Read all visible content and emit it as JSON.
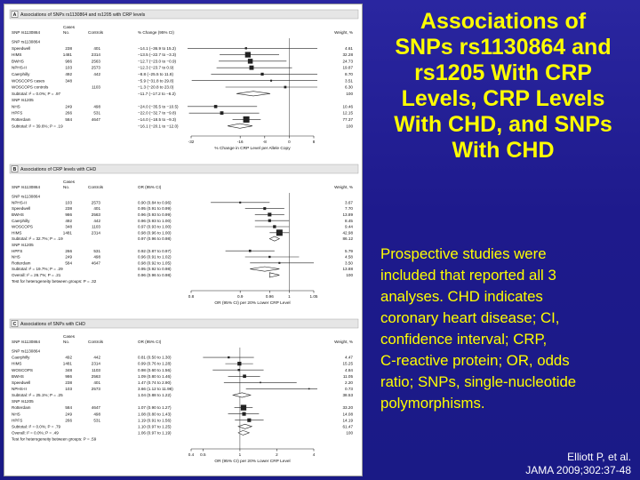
{
  "slide": {
    "title_lines": [
      "Associations of",
      "SNPs rs1130864 and",
      "rs1205 With CRP",
      "Levels, CRP Levels",
      "With CHD, and SNPs",
      "With CHD"
    ],
    "note_lines": [
      "Prospective studies were",
      "included that reported all 3",
      "analyses. CHD indicates",
      "coronary heart disease; CI,",
      "confidence interval; CRP,",
      "C-reactive protein; OR, odds",
      "ratio; SNPs, single-nucleotide",
      "polymorphisms."
    ],
    "citation_lines": [
      "Elliott P, et al.",
      "JAMA 2009;302:37-48"
    ]
  },
  "colors": {
    "background": "#1f1d8f",
    "title_text": "#ffff00",
    "note_text": "#ffff00",
    "citation_text": "#ffffff",
    "figure_bg": "#ffffff",
    "marker": "#222222",
    "header_bar": "#e6e6e6"
  },
  "panels": [
    {
      "letter": "A",
      "title": "Associations of SNPs rs1130864 and rs1205 with CRP levels",
      "headers": [
        "SNP rs1130864",
        "Cases, No.",
        "Controls",
        "% Change (95% CI)",
        "Weight, %"
      ],
      "axis": {
        "min": -32,
        "max": 8,
        "ticks": [
          -32,
          -16,
          -8,
          0,
          8
        ],
        "label": "% Change in CRP Level per Allele Copy",
        "reference": 0
      },
      "rows": [
        {
          "label": "SNP rs1130864",
          "kind": "group"
        },
        {
          "label": "Speedwell",
          "cases": "238",
          "controls": "401",
          "ci": "−14.1 (−36.9 to 15.2)",
          "weight": "4.61",
          "est": -14.1,
          "lo": -36.9,
          "hi": 15.2,
          "kind": "study"
        },
        {
          "label": "HIMS",
          "cases": "1481",
          "controls": "2314",
          "ci": "−13.5 (−22.7 to −3.3)",
          "weight": "32.28",
          "est": -13.5,
          "lo": -22.7,
          "hi": -3.3,
          "kind": "study"
        },
        {
          "label": "BWHS",
          "cases": "986",
          "controls": "2563",
          "ci": "−12.7 (−23.0 to −0.9)",
          "weight": "24.73",
          "est": -12.7,
          "lo": -23.0,
          "hi": -0.9,
          "kind": "study"
        },
        {
          "label": "NPHS-II",
          "cases": "103",
          "controls": "2573",
          "ci": "−12.3 (−23.7 to 0.9)",
          "weight": "19.87",
          "est": -12.3,
          "lo": -23.7,
          "hi": 0.9,
          "kind": "study"
        },
        {
          "label": "Caerphilly",
          "cases": "492",
          "controls": "442",
          "ci": "−8.8 (−25.5 to 11.8)",
          "weight": "8.70",
          "est": -8.8,
          "lo": -25.5,
          "hi": 11.8,
          "kind": "study"
        },
        {
          "label": "WOSCOPS cases",
          "cases": "348",
          "controls": "",
          "ci": "−5.9 (−31.8 to 29.8)",
          "weight": "3.51",
          "est": -5.9,
          "lo": -31.8,
          "hi": 29.8,
          "kind": "study"
        },
        {
          "label": "WOSCOPS controls",
          "cases": "",
          "controls": "1103",
          "ci": "−1.3 (−20.8 to 23.0)",
          "weight": "6.30",
          "est": -1.3,
          "lo": -20.8,
          "hi": 23.0,
          "kind": "study"
        },
        {
          "label": "Subtotal: I² = 0.0%; P = .97",
          "ci": "−11.7 (−17.2 to −6.2)",
          "weight": "100",
          "est": -11.7,
          "lo": -17.2,
          "hi": -6.2,
          "kind": "subtotal"
        },
        {
          "label": "SNP rs1205",
          "kind": "group"
        },
        {
          "label": "NHS",
          "cases": "249",
          "controls": "498",
          "ci": "−24.0 (−35.5 to −10.5)",
          "weight": "10.46",
          "est": -24.0,
          "lo": -35.5,
          "hi": -10.5,
          "kind": "study"
        },
        {
          "label": "HPFS",
          "cases": "266",
          "controls": "531",
          "ci": "−22.0 (−32.7 to −9.8)",
          "weight": "12.15",
          "est": -22.0,
          "lo": -32.7,
          "hi": -9.8,
          "kind": "study"
        },
        {
          "label": "Rotterdam",
          "cases": "584",
          "controls": "4647",
          "ci": "−14.0 (−18.5 to −9.3)",
          "weight": "77.37",
          "est": -14.0,
          "lo": -18.5,
          "hi": -9.3,
          "kind": "study"
        },
        {
          "label": "Subtotal: I² = 39.6%; P = .19",
          "ci": "−16.1 (−20.1 to −12.0)",
          "weight": "100",
          "est": -16.1,
          "lo": -20.1,
          "hi": -12.0,
          "kind": "subtotal"
        }
      ]
    },
    {
      "letter": "B",
      "title": "Associations of CRP levels with CHD",
      "headers": [
        "SNP rs1130864",
        "Cases, No.",
        "Controls",
        "OR (95% CI)",
        "Weight, %"
      ],
      "axis": {
        "min": 0.8,
        "max": 1.05,
        "ticks": [
          0.8,
          0.9,
          0.96,
          1.0,
          1.05
        ],
        "label": "OR (95% CI) per 20% Lower CRP Level",
        "reference": 1.0
      },
      "rows": [
        {
          "label": "SNP rs1130864",
          "kind": "group"
        },
        {
          "label": "NPHS-II",
          "cases": "103",
          "controls": "2573",
          "ci": "0.90 (0.84 to 0.96)",
          "weight": "3.67",
          "est": 0.9,
          "lo": 0.84,
          "hi": 0.96,
          "kind": "study"
        },
        {
          "label": "Speedwell",
          "cases": "238",
          "controls": "401",
          "ci": "0.95 (0.91 to 0.99)",
          "weight": "7.70",
          "est": 0.95,
          "lo": 0.91,
          "hi": 0.99,
          "kind": "study"
        },
        {
          "label": "BWHS",
          "cases": "986",
          "controls": "2563",
          "ci": "0.96 (0.93 to 0.99)",
          "weight": "13.89",
          "est": 0.96,
          "lo": 0.93,
          "hi": 0.99,
          "kind": "study"
        },
        {
          "label": "Caerphilly",
          "cases": "492",
          "controls": "442",
          "ci": "0.96 (0.93 to 1.00)",
          "weight": "8.45",
          "est": 0.96,
          "lo": 0.93,
          "hi": 1.0,
          "kind": "study"
        },
        {
          "label": "WOSCOPS",
          "cases": "348",
          "controls": "1103",
          "ci": "0.97 (0.93 to 1.00)",
          "weight": "9.44",
          "est": 0.97,
          "lo": 0.93,
          "hi": 1.0,
          "kind": "study"
        },
        {
          "label": "HIMS",
          "cases": "1481",
          "controls": "2314",
          "ci": "0.98 (0.96 to 1.00)",
          "weight": "42.98",
          "est": 0.98,
          "lo": 0.96,
          "hi": 1.0,
          "kind": "study"
        },
        {
          "label": "Subtotal: I² = 32.7%; P = .19",
          "ci": "0.97 (0.96 to 0.98)",
          "weight": "86.12",
          "est": 0.97,
          "lo": 0.96,
          "hi": 0.98,
          "kind": "subtotal"
        },
        {
          "label": "SNP rs1205",
          "kind": "group"
        },
        {
          "label": "HPFS",
          "cases": "266",
          "controls": "531",
          "ci": "0.92 (0.87 to 0.97)",
          "weight": "5.79",
          "est": 0.92,
          "lo": 0.87,
          "hi": 0.97,
          "kind": "study"
        },
        {
          "label": "NHS",
          "cases": "249",
          "controls": "498",
          "ci": "0.96 (0.91 to 1.02)",
          "weight": "4.58",
          "est": 0.96,
          "lo": 0.91,
          "hi": 1.02,
          "kind": "study"
        },
        {
          "label": "Rotterdam",
          "cases": "584",
          "controls": "4647",
          "ci": "0.98 (0.92 to 1.05)",
          "weight": "3.50",
          "est": 0.98,
          "lo": 0.92,
          "hi": 1.05,
          "kind": "study"
        },
        {
          "label": "Subtotal: I² = 19.7%; P = .29",
          "ci": "0.95 (0.92 to 0.98)",
          "weight": "13.88",
          "est": 0.95,
          "lo": 0.92,
          "hi": 0.98,
          "kind": "subtotal"
        },
        {
          "label": "Overall: I² = 26.7%; P = .21",
          "ci": "0.96 (0.96 to 0.98)",
          "weight": "100",
          "est": 0.96,
          "lo": 0.96,
          "hi": 0.98,
          "kind": "overall"
        },
        {
          "label": "Test for heterogeneity between groups: P = .32",
          "kind": "note"
        }
      ]
    },
    {
      "letter": "C",
      "title": "Associations of SNPs with CHD",
      "headers": [
        "SNP rs1130864",
        "Cases, No.",
        "Controls",
        "OR (95% CI)",
        "Weight, %"
      ],
      "axis": {
        "min": 0.4,
        "max": 4,
        "ticks": [
          0.4,
          0.5,
          1,
          2,
          4
        ],
        "log": true,
        "label": "OR (95% CI) per 20% Lower CRP Level",
        "reference": 1
      },
      "rows": [
        {
          "label": "SNP rs1130864",
          "kind": "group"
        },
        {
          "label": "Caerphilly",
          "cases": "492",
          "controls": "442",
          "ci": "0.81 (0.50 to 1.30)",
          "weight": "4.47",
          "est": 0.81,
          "lo": 0.5,
          "hi": 1.3,
          "kind": "study"
        },
        {
          "label": "HIMS",
          "cases": "1481",
          "controls": "2314",
          "ci": "0.99 (0.76 to 1.28)",
          "weight": "15.25",
          "est": 0.99,
          "lo": 0.76,
          "hi": 1.28,
          "kind": "study"
        },
        {
          "label": "WOSCOPS",
          "cases": "348",
          "controls": "1103",
          "ci": "0.98 (0.60 to 1.56)",
          "weight": "4.84",
          "est": 0.98,
          "lo": 0.6,
          "hi": 1.56,
          "kind": "study"
        },
        {
          "label": "BWHS",
          "cases": "986",
          "controls": "2563",
          "ci": "1.09 (0.80 to 1.46)",
          "weight": "11.05",
          "est": 1.09,
          "lo": 0.8,
          "hi": 1.46,
          "kind": "study"
        },
        {
          "label": "Speedwell",
          "cases": "238",
          "controls": "401",
          "ci": "1.47 (0.74 to 2.90)",
          "weight": "2.20",
          "est": 1.47,
          "lo": 0.74,
          "hi": 2.9,
          "kind": "study"
        },
        {
          "label": "NPHS-II",
          "cases": "103",
          "controls": "2573",
          "ci": "3.66 (1.12 to 11.98)",
          "weight": "0.73",
          "est": 3.66,
          "lo": 1.12,
          "hi": 11.98,
          "kind": "study"
        },
        {
          "label": "Subtotal: I² = 25.1%; P = .25",
          "ci": "1.04 (0.88 to 1.22)",
          "weight": "38.53",
          "est": 1.04,
          "lo": 0.88,
          "hi": 1.22,
          "kind": "subtotal"
        },
        {
          "label": "SNP rs1205",
          "kind": "group"
        },
        {
          "label": "Rotterdam",
          "cases": "584",
          "controls": "4647",
          "ci": "1.07 (0.90 to 1.27)",
          "weight": "33.20",
          "est": 1.07,
          "lo": 0.9,
          "hi": 1.27,
          "kind": "study"
        },
        {
          "label": "NHS",
          "cases": "249",
          "controls": "498",
          "ci": "1.08 (0.80 to 1.43)",
          "weight": "14.08",
          "est": 1.08,
          "lo": 0.8,
          "hi": 1.43,
          "kind": "study"
        },
        {
          "label": "HPFS",
          "cases": "266",
          "controls": "531",
          "ci": "1.19 (0.91 to 1.56)",
          "weight": "14.19",
          "est": 1.19,
          "lo": 0.91,
          "hi": 1.56,
          "kind": "study"
        },
        {
          "label": "Subtotal: I² = 0.0%; P = .79",
          "ci": "1.10 (0.97 to 1.25)",
          "weight": "61.47",
          "est": 1.1,
          "lo": 0.97,
          "hi": 1.25,
          "kind": "subtotal"
        },
        {
          "label": "Overall: I² = 0.0%; P = .49",
          "ci": "1.06 (0.97 to 1.19)",
          "weight": "100",
          "est": 1.06,
          "lo": 0.97,
          "hi": 1.19,
          "kind": "overall"
        },
        {
          "label": "Test for heterogeneity between groups: P = .59",
          "kind": "note"
        }
      ]
    }
  ]
}
